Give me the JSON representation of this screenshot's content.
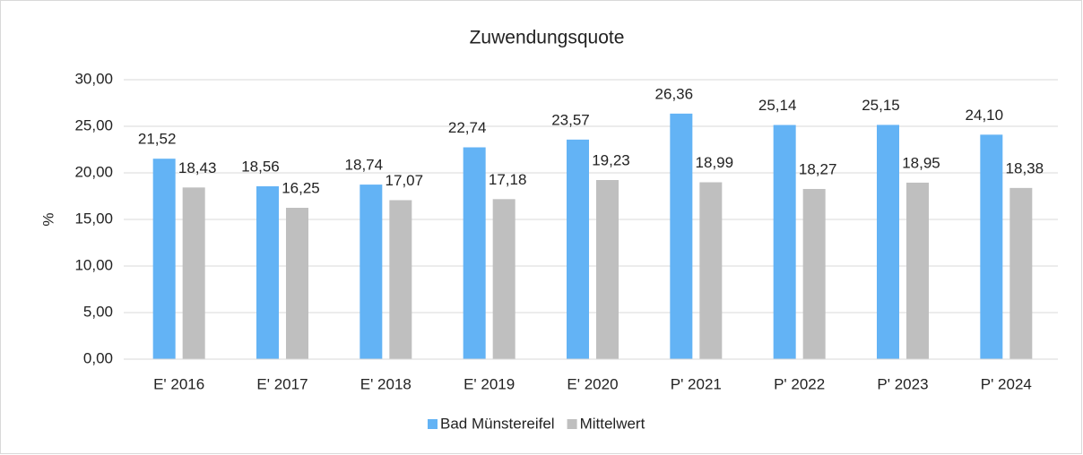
{
  "chart_data": {
    "type": "bar",
    "title": "Zuwendungsquote",
    "y_label": "%",
    "categories": [
      "E' 2016",
      "E' 2017",
      "E' 2018",
      "E' 2019",
      "E' 2020",
      "P' 2021",
      "P' 2022",
      "P' 2023",
      "P' 2024"
    ],
    "series": [
      {
        "name": "Bad Münstereifel",
        "color": "#63b3f5",
        "values": [
          21.52,
          18.56,
          18.74,
          22.74,
          23.57,
          26.36,
          25.14,
          25.15,
          24.1
        ],
        "value_labels": [
          "21,52",
          "18,56",
          "18,74",
          "22,74",
          "23,57",
          "26,36",
          "25,14",
          "25,15",
          "24,10"
        ]
      },
      {
        "name": "Mittelwert",
        "color": "#bfbfbf",
        "values": [
          18.43,
          16.25,
          17.07,
          17.18,
          19.23,
          18.99,
          18.27,
          18.95,
          18.38
        ],
        "value_labels": [
          "18,43",
          "16,25",
          "17,07",
          "17,18",
          "19,23",
          "18,99",
          "18,27",
          "18,95",
          "18,38"
        ]
      }
    ],
    "ylim": [
      0,
      30
    ],
    "yticks": [
      {
        "value": 0,
        "label": "0,00"
      },
      {
        "value": 5,
        "label": "5,00"
      },
      {
        "value": 10,
        "label": "10,00"
      },
      {
        "value": 15,
        "label": "15,00"
      },
      {
        "value": 20,
        "label": "20,00"
      },
      {
        "value": 25,
        "label": "25,00"
      },
      {
        "value": 30,
        "label": "30,00"
      }
    ],
    "grid": true,
    "legend": "bottom"
  }
}
